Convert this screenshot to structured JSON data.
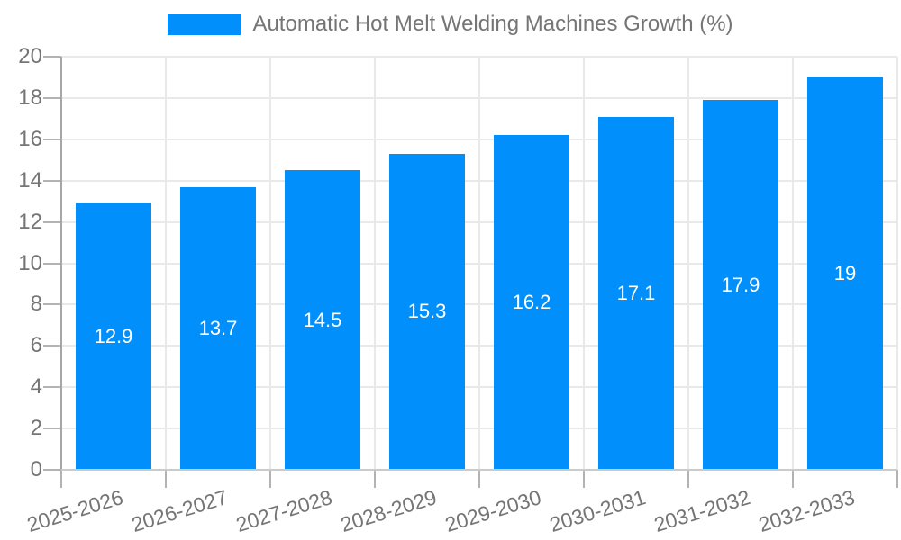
{
  "legend": {
    "label": "Automatic Hot Melt Welding Machines Growth (%)",
    "swatch_color": "#008FFB"
  },
  "chart_data": {
    "type": "bar",
    "title": "Automatic Hot Melt Welding Machines Growth (%)",
    "categories": [
      "2025-2026",
      "2026-2027",
      "2027-2028",
      "2028-2029",
      "2029-2030",
      "2030-2031",
      "2031-2032",
      "2032-2033"
    ],
    "series": [
      {
        "name": "Automatic Hot Melt Welding Machines Growth (%)",
        "values": [
          12.9,
          13.7,
          14.5,
          15.3,
          16.2,
          17.1,
          17.9,
          19
        ]
      }
    ],
    "data_labels": [
      "12.9",
      "13.7",
      "14.5",
      "15.3",
      "16.2",
      "17.1",
      "17.9",
      "19"
    ],
    "xlabel": "",
    "ylabel": "",
    "ylim": [
      0,
      20
    ],
    "ytick_step": 2,
    "ytick_labels": [
      "0",
      "2",
      "4",
      "6",
      "8",
      "10",
      "12",
      "14",
      "16",
      "18",
      "20"
    ],
    "grid": true,
    "legend_position": "top"
  },
  "colors": {
    "bar": "#008FFB",
    "grid": "#e9e9e9",
    "axis_y_line": "#a6a6a6",
    "axis_x_line": "#cbcbcb",
    "tick": "#b3b3b3",
    "axis_text": "#757575",
    "legend_text": "#757575",
    "data_label_text": "#ffffff",
    "background": "#ffffff"
  }
}
